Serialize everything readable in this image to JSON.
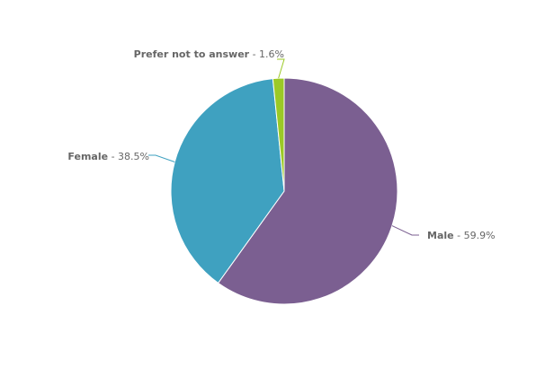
{
  "chart_data": {
    "type": "pie",
    "title": "",
    "series": [
      {
        "values": [
          {
            "name": "Male",
            "value": 59.9,
            "label": "59.9%",
            "color": "#7b5f91"
          },
          {
            "name": "Female",
            "value": 38.5,
            "label": "38.5%",
            "color": "#3fa1c0"
          },
          {
            "name": "Prefer not to answer",
            "value": 1.6,
            "label": "1.6%",
            "color": "#9bc926"
          }
        ]
      }
    ],
    "start_angle": "top (12 o'clock), clockwise",
    "legend": "none",
    "label_separator": " - "
  }
}
